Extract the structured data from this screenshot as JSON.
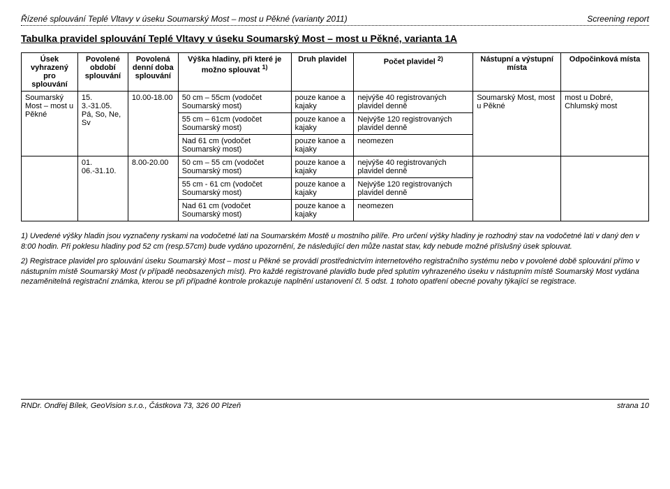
{
  "header": {
    "left": "Řízené splouvání Teplé Vltavy v úseku Soumarský Most – most u Pěkné (varianty 2011)",
    "right": "Screening report"
  },
  "title": "Tabulka pravidel splouvání Teplé Vltavy v úseku Soumarský Most – most u Pěkné, varianta 1A",
  "columns": {
    "c1": "Úsek vyhrazený pro splouvání",
    "c2": "Povolené období splouvání",
    "c3": "Povolená denní doba splouvání",
    "c4_a": "Výška hladiny, při které je možno splouvat ",
    "c4_sup": "1)",
    "c5": "Druh plavidel",
    "c6_a": "Počet plavidel ",
    "c6_sup": "2)",
    "c7": "Nástupní a výstupní místa",
    "c8": "Odpočinková místa"
  },
  "r1": {
    "usek": "Soumarský Most – most u Pěkné",
    "obdobi": "15. 3.-31.05. Pá, So, Ne, Sv",
    "doba": "10.00-18.00",
    "v1": "50 cm – 55cm (vodočet Soumarský most)",
    "v2": "55 cm – 61cm (vodočet Soumarský most)",
    "v3": "Nad 61 cm (vodočet Soumarský most)",
    "d1": "pouze kanoe a kajaky",
    "d2": "pouze kanoe a kajaky",
    "d3": "pouze kanoe a kajaky",
    "p1": "nejvýše 40 registrovaných plavidel denně",
    "p2": "Nejvýše 120 registrovaných plavidel denně",
    "p3": "neomezen",
    "nastup": "Soumarský Most, most u Pěkné",
    "odpo": "most u Dobré, Chlumský most"
  },
  "r2": {
    "obdobi": "01. 06.-31.10.",
    "doba": "8.00-20.00",
    "v1": "50 cm – 55 cm (vodočet Soumarský most)",
    "v2": "55 cm - 61 cm (vodočet Soumarský most)",
    "v3": "Nad 61 cm (vodočet Soumarský most)",
    "d1": "pouze kanoe a kajaky",
    "d2": "pouze kanoe a kajaky",
    "d3": "pouze kanoe a kajaky",
    "p1": "nejvýše 40 registrovaných plavidel denně",
    "p2": "Nejvýše 120 registrovaných plavidel denně",
    "p3": "neomezen"
  },
  "notes": {
    "n1": "1) Uvedené výšky hladin jsou vyznačeny ryskami na vodočetné lati na Soumarském Mostě u mostního pilíře. Pro určení výšky hladiny je rozhodný stav na vodočetné lati v daný den v 8:00 hodin. Při poklesu hladiny pod 52 cm (resp.57cm) bude vydáno upozornění, že následující den může nastat stav, kdy nebude možné příslušný úsek splouvat.",
    "n2": "2) Registrace plavidel pro splouvání úseku Soumarský Most – most u Pěkné se provádí prostřednictvím internetového registračního systému nebo v povolené době splouvání přímo v nástupním místě Soumarský Most (v případě neobsazených míst). Pro každé registrované plavidlo bude před splutím vyhrazeného úseku v nástupním místě Soumarský Most vydána nezaměnitelná registrační známka, kterou se při případné kontrole prokazuje naplnění ustanovení čl. 5 odst. 1 tohoto opatření obecné povahy týkající se registrace."
  },
  "footer": {
    "left": "RNDr. Ondřej Bílek, GeoVision s.r.o., Částkova 73, 326 00 Plzeň",
    "right": "strana   10"
  }
}
